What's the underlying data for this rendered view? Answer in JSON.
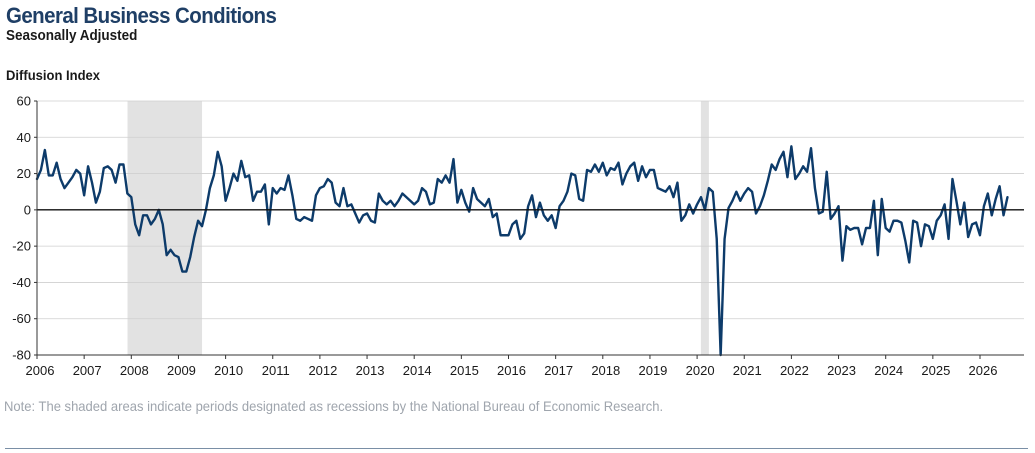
{
  "header": {
    "title": "General Business Conditions",
    "subtitle": "Seasonally Adjusted",
    "y_axis_label": "Diffusion Index"
  },
  "note": "Note: The shaded areas indicate periods designated as recessions by the National Bureau of Economic Research.",
  "colors": {
    "line": "#0d3b6a",
    "recession": "#e2e2e2",
    "grid": "#cfcfcf",
    "note": "#9fa5ad",
    "title": "#1f3f66"
  },
  "chart_data": {
    "type": "line",
    "title": "General Business Conditions",
    "subtitle": "Seasonally Adjusted",
    "ylabel": "Diffusion Index",
    "xlabel": "",
    "ylim": [
      -80,
      60
    ],
    "xlim": [
      2006,
      2027
    ],
    "grid": true,
    "y_ticks": [
      60,
      40,
      20,
      0,
      -20,
      -40,
      -60,
      -80
    ],
    "x_ticks": [
      2006,
      2007,
      2008,
      2009,
      2010,
      2011,
      2012,
      2013,
      2014,
      2015,
      2016,
      2017,
      2018,
      2019,
      2020,
      2021,
      2022,
      2023,
      2024,
      2025,
      2026
    ],
    "recessions": [
      {
        "start": 2007.92,
        "end": 2009.5
      },
      {
        "start": 2020.08,
        "end": 2020.25
      }
    ],
    "series": [
      {
        "name": "General Business Conditions",
        "start": 2006.0,
        "step": 0.08333,
        "values": [
          17,
          22,
          33,
          19,
          19,
          26,
          17,
          12,
          15,
          18,
          22,
          20,
          8,
          24,
          15,
          4,
          10,
          23,
          24,
          22,
          15,
          25,
          25,
          9,
          7,
          -8,
          -14,
          -3,
          -3,
          -8,
          -5,
          0,
          -8,
          -25,
          -22,
          -25,
          -26,
          -34,
          -34,
          -26,
          -15,
          -6,
          -9,
          0,
          12,
          19,
          32,
          24,
          5,
          12,
          20,
          16,
          27,
          18,
          19,
          5,
          10,
          10,
          14,
          -8,
          12,
          9,
          12,
          11,
          19,
          8,
          -5,
          -6,
          -4,
          -5,
          -6,
          8,
          12,
          13,
          17,
          15,
          4,
          2,
          12,
          2,
          3,
          -2,
          -7,
          -3,
          -2,
          -6,
          -7,
          9,
          5,
          3,
          5,
          2,
          5,
          9,
          7,
          5,
          3,
          5,
          12,
          10,
          3,
          4,
          17,
          15,
          19,
          15,
          28,
          4,
          11,
          4,
          -1,
          12,
          6,
          4,
          2,
          6,
          -4,
          -2,
          -14,
          -14,
          -14,
          -8,
          -6,
          -16,
          -13,
          2,
          8,
          -4,
          4,
          -3,
          -6,
          -3,
          -10,
          2,
          5,
          10,
          20,
          19,
          6,
          5,
          22,
          21,
          25,
          21,
          26,
          19,
          23,
          22,
          26,
          14,
          20,
          24,
          26,
          16,
          24,
          18,
          22,
          22,
          12,
          11,
          10,
          13,
          7,
          15,
          -6,
          -3,
          3,
          -2,
          3,
          7,
          0,
          12,
          10,
          -16,
          -80,
          -16,
          1,
          5,
          10,
          5,
          9,
          12,
          10,
          -2,
          2,
          8,
          16,
          25,
          22,
          28,
          32,
          18,
          35,
          17,
          20,
          24,
          21,
          34,
          12,
          -2,
          -1,
          21,
          -5,
          -2,
          2,
          -28,
          -9,
          -11,
          -10,
          -10,
          -19,
          -10,
          -10,
          5,
          -25,
          6,
          -10,
          -12,
          -6,
          -6,
          -7,
          -17,
          -29,
          -6,
          -7,
          -20,
          -8,
          -9,
          -16,
          -6,
          -3,
          3,
          -16,
          17,
          5,
          -8,
          4,
          -15,
          -8,
          -7,
          -14,
          2,
          9,
          -3,
          6,
          13,
          -3,
          7
        ]
      }
    ]
  }
}
